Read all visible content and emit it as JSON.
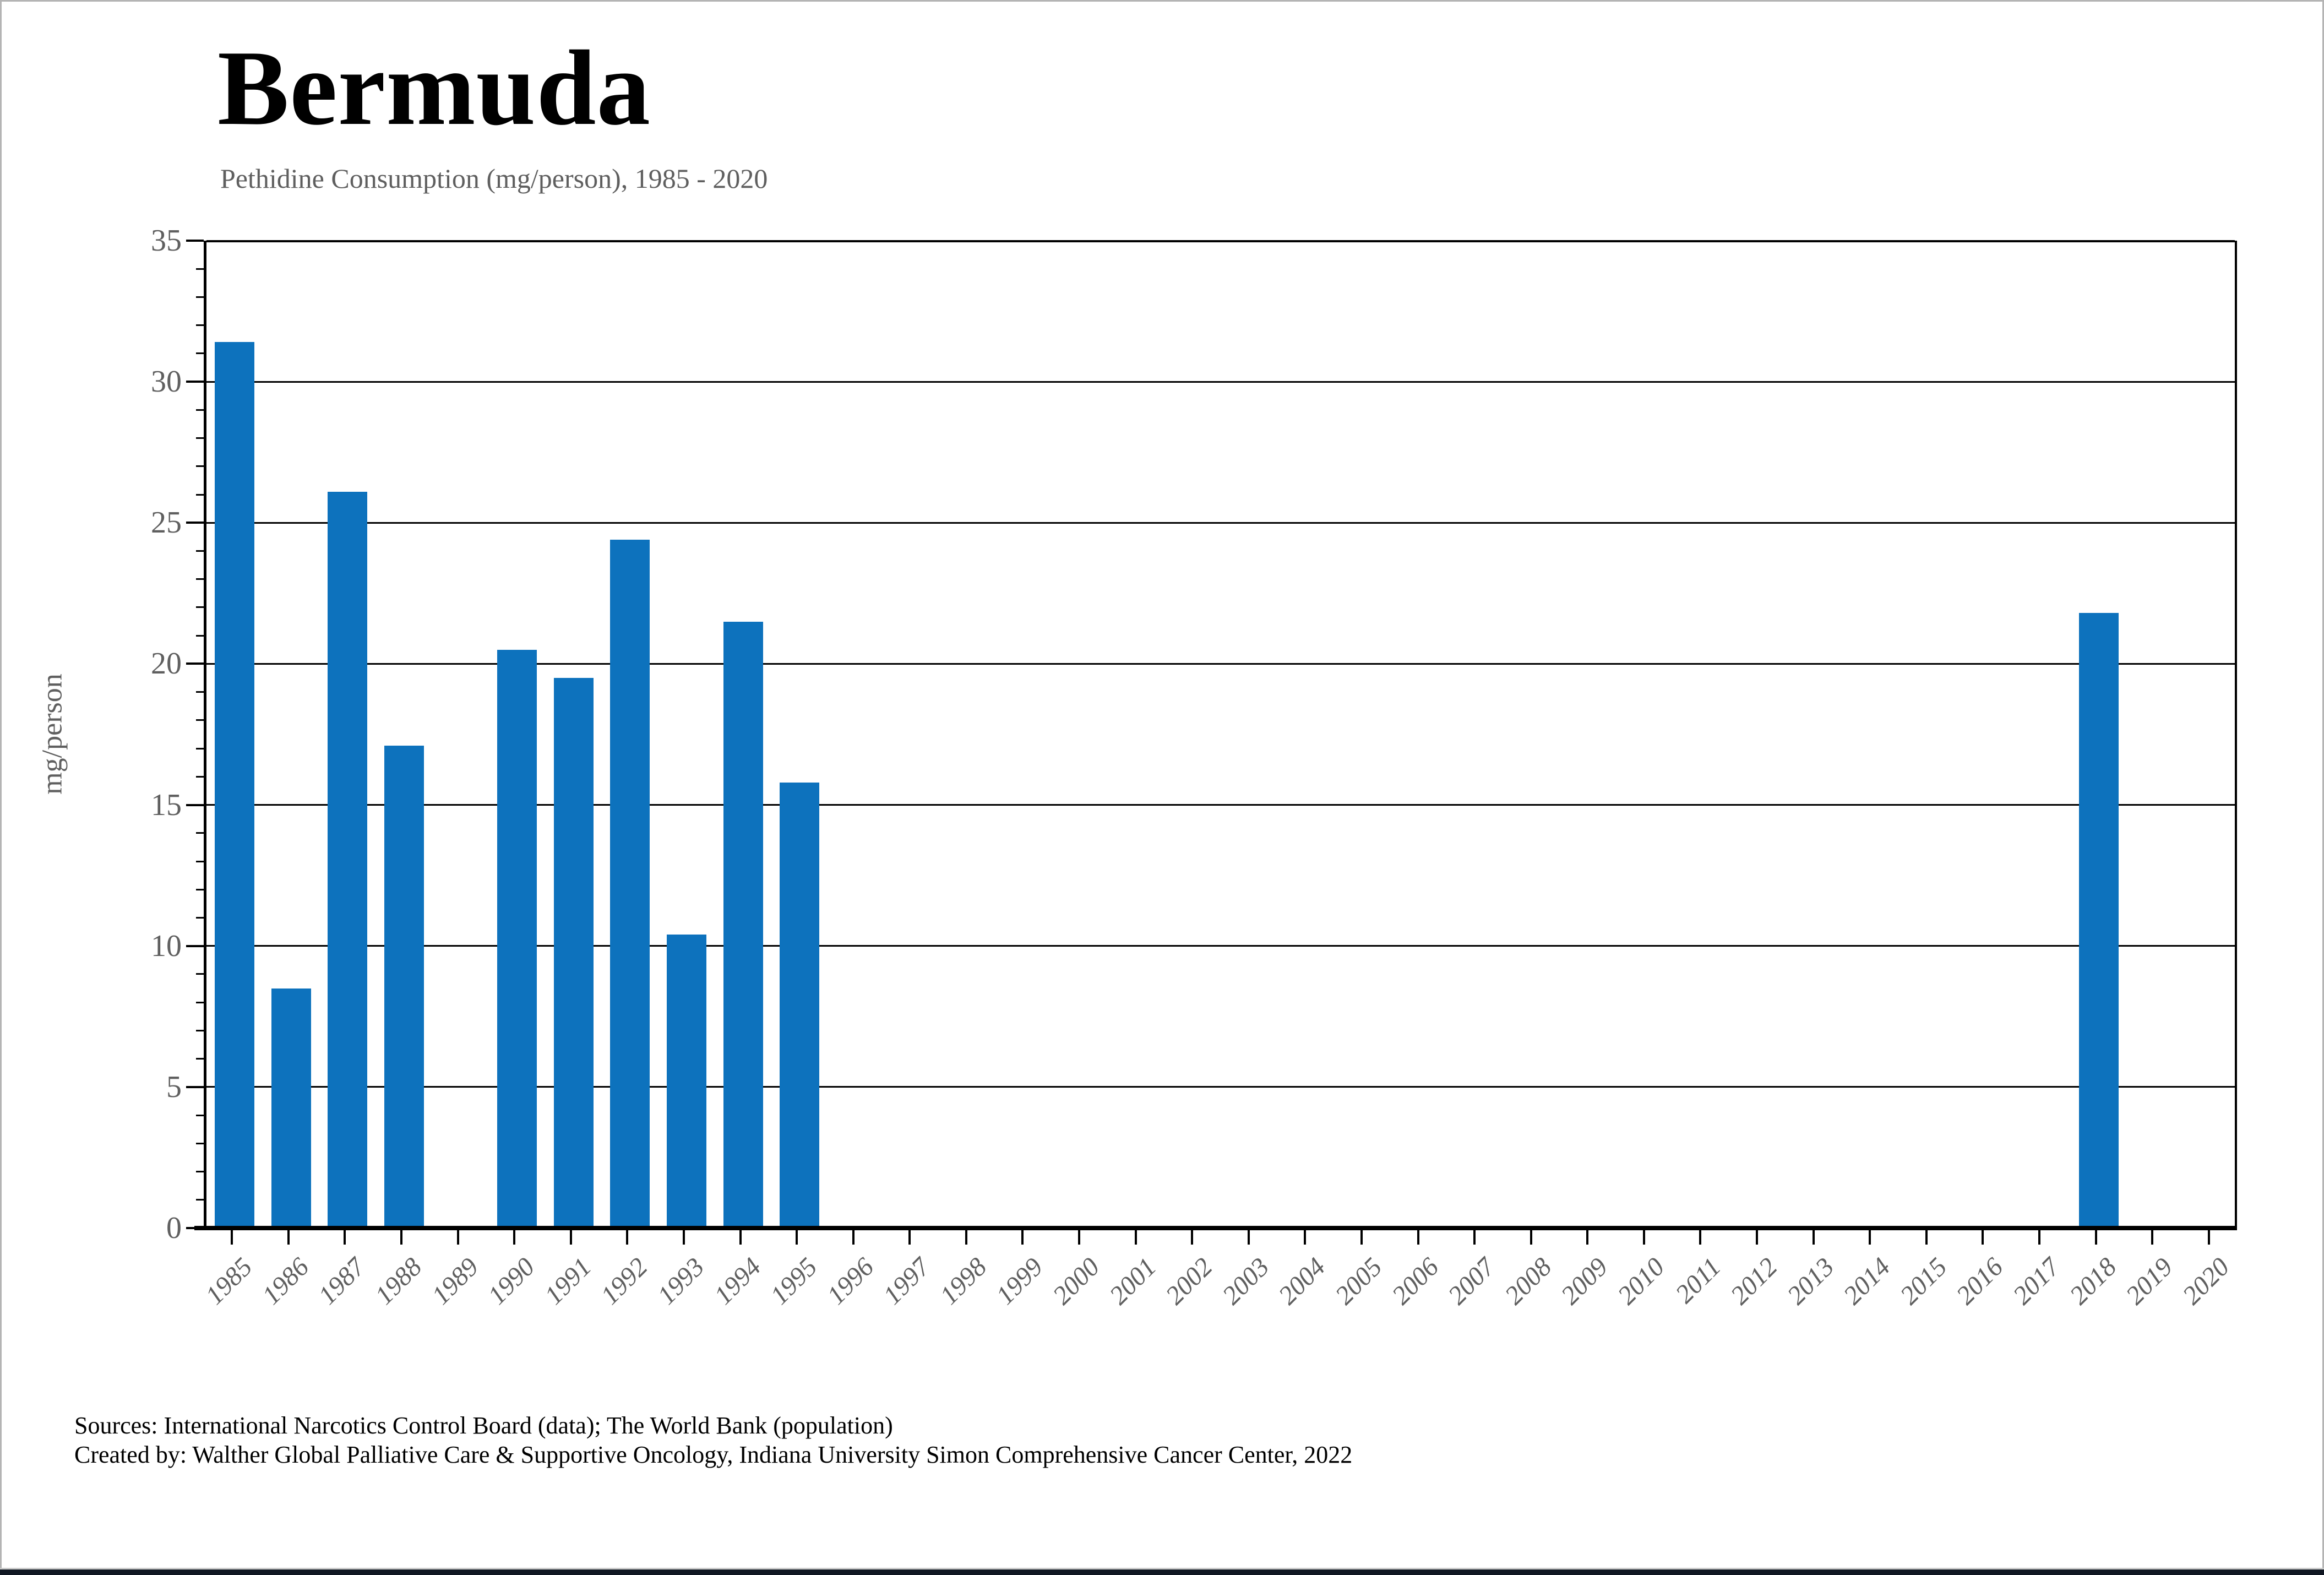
{
  "header": {
    "title": "Bermuda",
    "subtitle": "Pethidine Consumption (mg/person), 1985 - 2020"
  },
  "footer": {
    "line1": "Sources: International Narcotics Control Board (data); The World Bank (population)",
    "line2": "Created by: Walther Global Palliative Care & Supportive Oncology, Indiana University Simon Comprehensive Cancer Center, 2022"
  },
  "chart_data": {
    "type": "bar",
    "title": "Bermuda",
    "subtitle": "Pethidine Consumption (mg/person), 1985 - 2020",
    "xlabel": "",
    "ylabel": "mg/person",
    "ylim": [
      0,
      35
    ],
    "yticks": [
      0,
      5,
      10,
      15,
      20,
      25,
      30,
      35
    ],
    "minor_tick_interval": 1,
    "grid": true,
    "legend": "none",
    "bar_color": "#0d72bd",
    "categories": [
      "1985",
      "1986",
      "1987",
      "1988",
      "1989",
      "1990",
      "1991",
      "1992",
      "1993",
      "1994",
      "1995",
      "1996",
      "1997",
      "1998",
      "1999",
      "2000",
      "2001",
      "2002",
      "2003",
      "2004",
      "2005",
      "2006",
      "2007",
      "2008",
      "2009",
      "2010",
      "2011",
      "2012",
      "2013",
      "2014",
      "2015",
      "2016",
      "2017",
      "2018",
      "2019",
      "2020"
    ],
    "values": [
      31.4,
      8.5,
      26.1,
      17.1,
      0,
      20.5,
      19.5,
      24.4,
      10.4,
      21.5,
      15.8,
      0,
      0,
      0,
      0,
      0,
      0,
      0,
      0,
      0,
      0,
      0,
      0,
      0,
      0,
      0,
      0,
      0,
      0,
      0,
      0,
      0,
      0,
      21.8,
      0,
      0
    ]
  },
  "colors": {
    "bar": "#0d72bd",
    "axis_text": "#5f5f5f",
    "gridline": "#000000",
    "title_text": "#000000",
    "bottom_strip": "#101722"
  }
}
